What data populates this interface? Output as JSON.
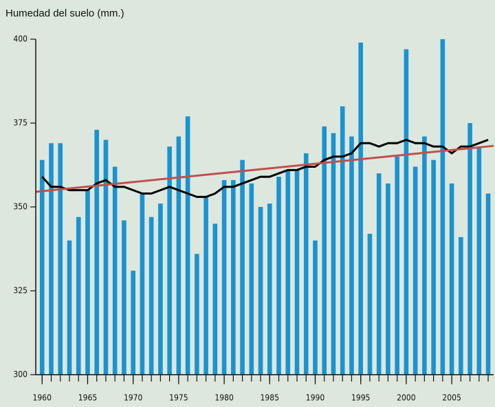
{
  "chart_data": {
    "type": "bar",
    "title": "Humedad del suelo (mm.)",
    "x": [
      1960,
      1961,
      1962,
      1963,
      1964,
      1965,
      1966,
      1967,
      1968,
      1969,
      1970,
      1971,
      1972,
      1973,
      1974,
      1975,
      1976,
      1977,
      1978,
      1979,
      1980,
      1981,
      1982,
      1983,
      1984,
      1985,
      1986,
      1987,
      1988,
      1989,
      1990,
      1991,
      1992,
      1993,
      1994,
      1995,
      1996,
      1997,
      1998,
      1999,
      2000,
      2001,
      2002,
      2003,
      2004,
      2005,
      2006,
      2007,
      2008,
      2009
    ],
    "series": [
      {
        "type": "bar",
        "color": "#1a93d0",
        "values": [
          364,
          369,
          369,
          340,
          347,
          355,
          373,
          370,
          362,
          346,
          331,
          354,
          347,
          351,
          368,
          371,
          377,
          336,
          353,
          345,
          358,
          358,
          364,
          357,
          350,
          351,
          359,
          361,
          361,
          366,
          340,
          374,
          372,
          380,
          371,
          399,
          342,
          360,
          357,
          365,
          397,
          362,
          371,
          364,
          400,
          357,
          341,
          375,
          368,
          354
        ]
      },
      {
        "type": "line",
        "color": "#000000",
        "values": [
          359,
          356,
          356,
          355,
          355,
          355,
          357,
          358,
          356,
          356,
          355,
          354,
          354,
          355,
          356,
          355,
          354,
          353,
          353,
          354,
          356,
          356,
          357,
          358,
          359,
          359,
          360,
          361,
          361,
          362,
          362,
          364,
          365,
          365,
          366,
          369,
          369,
          368,
          369,
          369,
          370,
          369,
          369,
          368,
          368,
          366,
          368,
          368,
          369,
          370
        ]
      }
    ],
    "trend": {
      "color": "#c0504d",
      "x": [
        1959.3,
        2009.6
      ],
      "values": [
        354.5,
        368.2
      ]
    },
    "xlim": [
      1959.3,
      2009.6
    ],
    "xticks": [
      1960,
      1965,
      1970,
      1975,
      1980,
      1985,
      1990,
      1995,
      2000,
      2005
    ],
    "ylim": [
      300,
      400
    ],
    "yticks": [
      300,
      325,
      350,
      375,
      400
    ]
  }
}
